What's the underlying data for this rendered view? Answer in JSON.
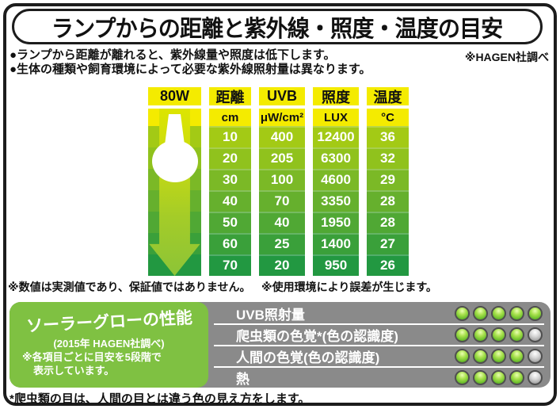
{
  "title": "ランプからの距離と紫外線・照度・温度の目安",
  "intro": {
    "bullet1": "●ランプから距離が離れると、紫外線量や照度は低下します。",
    "bullet2": "●生体の種類や飼育環境によって必要な紫外線照射量は異なります。",
    "source_note": "※HAGEN社調べ"
  },
  "chart_data": {
    "type": "table",
    "title": "ランプからの距離と紫外線・照度・温度の目安",
    "lamp_wattage": "80W",
    "columns": [
      {
        "header": "距離",
        "unit": "cm"
      },
      {
        "header": "UVB",
        "unit": "μW/cm²"
      },
      {
        "header": "照度",
        "unit": "LUX"
      },
      {
        "header": "温度",
        "unit": "°C"
      }
    ],
    "rows": [
      [
        "10",
        "400",
        "12400",
        "36"
      ],
      [
        "20",
        "205",
        "6300",
        "32"
      ],
      [
        "30",
        "100",
        "4600",
        "29"
      ],
      [
        "40",
        "70",
        "3350",
        "28"
      ],
      [
        "50",
        "40",
        "1950",
        "28"
      ],
      [
        "60",
        "25",
        "1400",
        "27"
      ],
      [
        "70",
        "20",
        "950",
        "26"
      ]
    ]
  },
  "table_notes": {
    "note1": "※数値は実測値であり、保証値ではありません。",
    "note2": "※使用環境により誤差が生じます。"
  },
  "performance": {
    "title": "ソーラーグローの性能",
    "subtitle": "(2015年 HAGEN社調べ)",
    "desc_line1": "※各項目ごとに目安を5段階で",
    "desc_line2": "表示しています。",
    "scale_max": 5,
    "items": [
      {
        "label": "UVB照射量",
        "rating": 5
      },
      {
        "label": "爬虫類の色覚*(色の認識度)",
        "rating": 4
      },
      {
        "label": "人間の色覚(色の認識度)",
        "rating": 4
      },
      {
        "label": "熱",
        "rating": 4
      }
    ]
  },
  "bottom_note": "*爬虫類の目は、人間の目とは違う色の見え方をします。",
  "colors": {
    "header_yellow": "#f4eb00",
    "row_greens": [
      "#a3ca15",
      "#90c21d",
      "#7bb926",
      "#66b02d",
      "#50a834",
      "#3aa03a",
      "#229841"
    ],
    "panel_gray": "#8a8a8a",
    "panel_green": "#7fc142",
    "dot_green": "#64ba28",
    "dot_gray": "#b9b9b9",
    "frame_border": "#1c1c1c"
  }
}
